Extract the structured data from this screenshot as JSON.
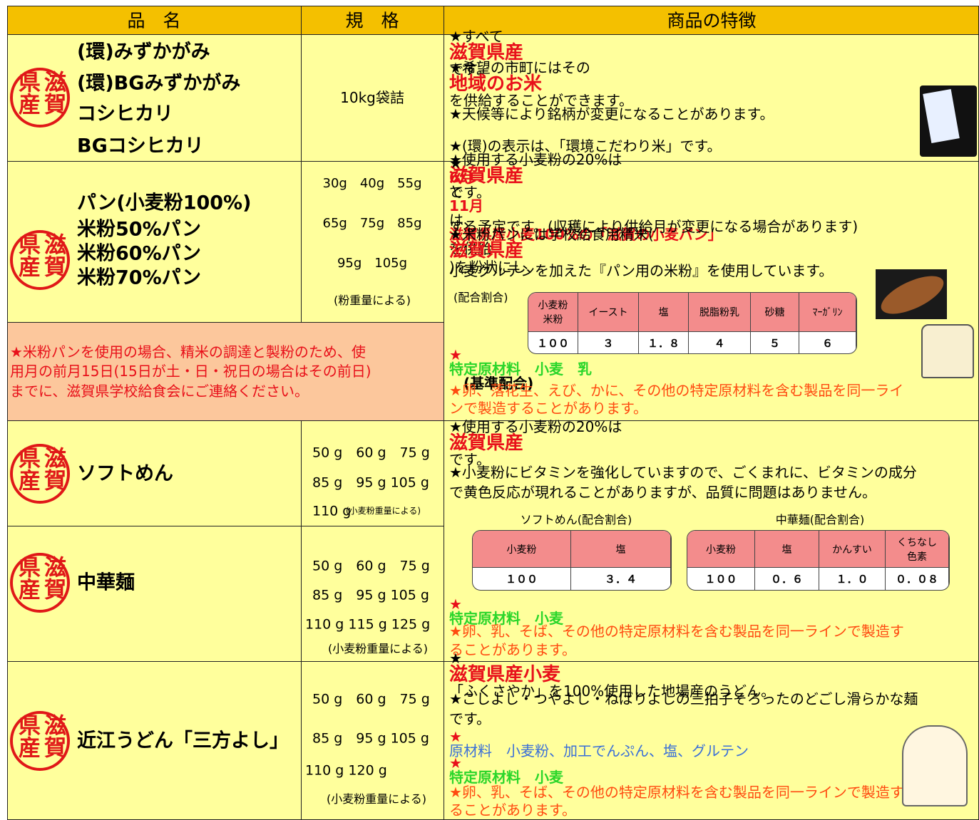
{
  "header": {
    "name": "品　名",
    "spec": "規　格",
    "features": "商品の特徴"
  },
  "stamp": "滋賀県産",
  "rice": {
    "names": [
      "(環)みずかがみ",
      "(環)BGみずかがみ",
      "コシヒカリ",
      "BGコシヒカリ"
    ],
    "spec": "10kg袋詰",
    "features": [
      [
        {
          "text": "★すべて"
        },
        {
          "text": "滋賀県産",
          "style": "em"
        },
        {
          "text": "です。"
        }
      ],
      [
        {
          "text": "★希望の市町にはその"
        },
        {
          "text": "地域のお米",
          "style": "em"
        },
        {
          "text": "を供給することができます。"
        }
      ],
      [
        {
          "text": "★天候等により銘柄が変更になることがあります。"
        }
      ],
      [
        {
          "text": "★(環)の表示は、「環境こだわり米」です。"
        }
      ]
    ]
  },
  "bread": {
    "names": [
      "パン(小麦粉100%)",
      "米粉50%パン",
      "米粉60%パン",
      "米粉70%パン"
    ],
    "specs": [
      "30g　40g　55g",
      "65g　75g　85g",
      "95g　105g"
    ],
    "spec_note": "(粉重量による)",
    "notice": [
      "★米粉パンを使用の場合、精米の調達と製粉のため、使",
      "用月の前月15日(15日が土・日・祝日の場合はその前日)",
      "までに、滋賀県学校給食会にご連絡ください。"
    ],
    "features_top": [
      [
        {
          "text": "★使用する小麦粉の20%は"
        },
        {
          "text": "滋賀県産",
          "style": "em"
        },
        {
          "text": "です。"
        }
      ],
      [
        {
          "text": "★"
        },
        {
          "text": "6月",
          "style": "red"
        },
        {
          "text": "と"
        },
        {
          "text": "11月",
          "style": "red"
        },
        {
          "text": "は、"
        },
        {
          "text": "滋賀県産小麦100%の「滋賀の小麦パン」",
          "style": "red"
        },
        {
          "text": "を供給"
        }
      ],
      [
        {
          "text": "する予定です。(収穫により供給月が変更になる場合があります)"
        }
      ],
      [
        {
          "text": "★米粉パンには学校給食用精米("
        },
        {
          "text": "滋賀県産",
          "style": "em"
        },
        {
          "text": ")を粉状にし、"
        }
      ],
      [
        {
          "text": "小麦グルテンを加えた『パン用の米粉』を使用しています。"
        }
      ]
    ],
    "ratio": {
      "label": "(配合割合)",
      "headers": [
        "小麦粉\n米粉",
        "イースト",
        "塩",
        "脱脂粉乳",
        "砂糖",
        "ﾏｰｶﾞﾘﾝ"
      ],
      "values": [
        "１００",
        "３",
        "１．８",
        "４",
        "５",
        "６"
      ]
    },
    "features_bottom": [
      [
        {
          "text": "★",
          "style": "red"
        },
        {
          "text": "特定原材料　小麦　乳",
          "style": "green"
        },
        {
          "text": "　(基準配合)",
          "style": "bold"
        }
      ],
      [
        {
          "text": "★卵、落花生、えび、かに、その他の特定原材料を含む製品を同一ライ",
          "style": "orange"
        }
      ],
      [
        {
          "text": "ンで製造することがあります。",
          "style": "orange"
        }
      ]
    ]
  },
  "noodles": {
    "items": [
      {
        "name": "ソフトめん",
        "specs": [
          "50 g　60 g　75 g",
          "85 g　95 g 105 g",
          "110 g"
        ],
        "spec_note": "(小麦粉重量による)"
      },
      {
        "name": "中華麺",
        "specs": [
          "50 g　60 g　75 g",
          "85 g　95 g 105 g",
          "110 g 115 g 125 g"
        ],
        "spec_note": "(小麦粉重量による)"
      }
    ],
    "features_top": [
      [
        {
          "text": "★使用する小麦粉の20%は"
        },
        {
          "text": "滋賀県産",
          "style": "em"
        },
        {
          "text": "です。"
        }
      ],
      [
        {
          "text": "★小麦粉にビタミンを強化していますので、ごくまれに、ビタミンの成分"
        }
      ],
      [
        {
          "text": "で黄色反応が現れることがありますが、品質に問題はありません。"
        }
      ]
    ],
    "tables": [
      {
        "title": "ソフトめん(配合割合)",
        "headers": [
          "小麦粉",
          "塩"
        ],
        "values": [
          "１００",
          "３．４"
        ]
      },
      {
        "title": "中華麺(配合割合)",
        "headers": [
          "小麦粉",
          "塩",
          "かんすい",
          "くちなし\n色素"
        ],
        "values": [
          "１００",
          "０．６",
          "１．０",
          "０．０８"
        ]
      }
    ],
    "features_bottom": [
      [
        {
          "text": "★",
          "style": "red"
        },
        {
          "text": "特定原材料　小麦",
          "style": "green"
        }
      ],
      [
        {
          "text": "★卵、乳、そば、その他の特定原材料を含む製品を同一ラインで製造す",
          "style": "orange"
        }
      ],
      [
        {
          "text": "ることがあります。",
          "style": "orange"
        }
      ]
    ]
  },
  "udon": {
    "name": "近江うどん「三方よし」",
    "specs": [
      "50 g　60 g　75 g",
      "85 g　95 g 105 g",
      "110 g 120 g"
    ],
    "spec_note": "(小麦粉重量による)",
    "features": [
      [
        {
          "text": "★"
        },
        {
          "text": "滋賀県産小麦",
          "style": "em"
        },
        {
          "text": "「ふくさやか」を100%使用した地場産のうどん。"
        }
      ],
      [
        {
          "text": "★こしよし・つやよし・ねばりよしの三拍子そろったのどごし滑らかな麺"
        }
      ],
      [
        {
          "text": "です。"
        }
      ],
      [
        {
          "text": "★",
          "style": "red"
        },
        {
          "text": "原材料　小麦粉、加工でんぷん、塩、グルテン",
          "style": "blue"
        }
      ],
      [
        {
          "text": "★",
          "style": "red"
        },
        {
          "text": "特定原材料　小麦",
          "style": "green"
        }
      ],
      [
        {
          "text": "★卵、乳、そば、その他の特定原材料を含む製品を同一ラインで製造す",
          "style": "orange"
        }
      ],
      [
        {
          "text": "ることがあります。",
          "style": "orange"
        }
      ]
    ]
  }
}
